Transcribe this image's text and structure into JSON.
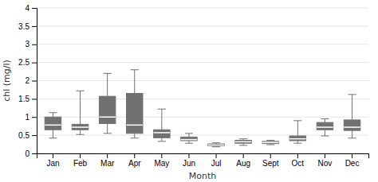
{
  "chart_data": {
    "type": "box",
    "xlabel": "Month",
    "ylabel": "chl (mg/l)",
    "categories": [
      "Jan",
      "Feb",
      "Mar",
      "Apr",
      "May",
      "Jun",
      "Jul",
      "Aug",
      "Sept",
      "Oct",
      "Nov",
      "Dec"
    ],
    "q1": [
      0.65,
      0.65,
      0.82,
      0.55,
      0.43,
      0.35,
      0.21,
      0.28,
      0.27,
      0.35,
      0.65,
      0.63
    ],
    "median": [
      0.78,
      0.72,
      1.0,
      0.78,
      0.57,
      0.38,
      0.23,
      0.32,
      0.3,
      0.4,
      0.72,
      0.72
    ],
    "q3": [
      1.0,
      0.8,
      1.57,
      1.65,
      0.65,
      0.45,
      0.26,
      0.36,
      0.33,
      0.48,
      0.85,
      0.92
    ],
    "whisker_low": [
      0.42,
      0.52,
      0.55,
      0.42,
      0.33,
      0.28,
      0.18,
      0.22,
      0.24,
      0.28,
      0.48,
      0.42
    ],
    "whisker_high": [
      1.12,
      1.72,
      2.2,
      2.3,
      1.22,
      0.55,
      0.29,
      0.4,
      0.36,
      0.9,
      0.95,
      1.62
    ],
    "color": "#717171",
    "ylim": [
      0,
      4
    ],
    "yticks": [
      0,
      0.5,
      1,
      1.5,
      2,
      2.5,
      3,
      3.5,
      4
    ],
    "grid": true
  }
}
